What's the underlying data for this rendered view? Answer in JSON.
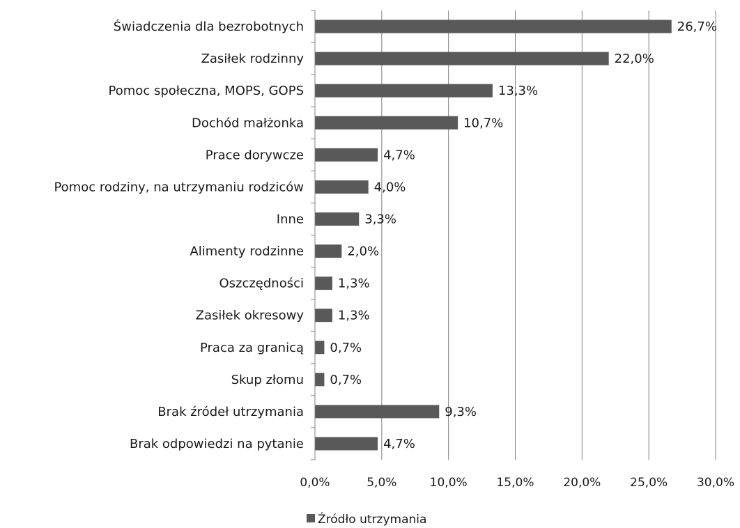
{
  "chart_data": {
    "type": "bar",
    "orientation": "horizontal",
    "categories": [
      "Świadczenia dla bezrobotnych",
      "Zasiłek rodzinny",
      "Pomoc społeczna, MOPS, GOPS",
      "Dochód małżonka",
      "Prace dorywcze",
      "Pomoc rodziny, na utrzymaniu  rodziców",
      "Inne",
      "Alimenty rodzinne",
      "Oszczędności",
      "Zasiłek okresowy",
      "Praca za granicą",
      "Skup złomu",
      "Brak źródeł utrzymania",
      "Brak odpowiedzi  na pytanie"
    ],
    "series": [
      {
        "name": "Źródło utrzymania",
        "values": [
          26.7,
          22.0,
          13.3,
          10.7,
          4.7,
          4.0,
          3.3,
          2.0,
          1.3,
          1.3,
          0.7,
          0.7,
          9.3,
          4.7
        ],
        "labels": [
          "26,7%",
          "22,0%",
          "13,3%",
          "10,7%",
          "4,7%",
          "4,0%",
          "3,3%",
          "2,0%",
          "1,3%",
          "1,3%",
          "0,7%",
          "0,7%",
          "9,3%",
          "4,7%"
        ],
        "color": "#595959"
      }
    ],
    "xlim": [
      0,
      30
    ],
    "xticks": [
      0,
      5,
      10,
      15,
      20,
      25,
      30
    ],
    "xtick_labels": [
      "0,0%",
      "5,0%",
      "10,0%",
      "15,0%",
      "20,0%",
      "25,0%",
      "30,0%"
    ],
    "grid": "vertical",
    "gridline_color": "#808080",
    "legend": {
      "position": "bottom",
      "entries": [
        "Źródło utrzymania"
      ]
    }
  }
}
